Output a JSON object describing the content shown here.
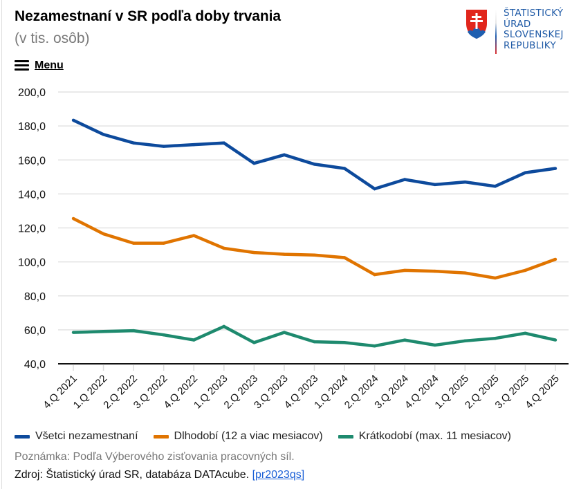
{
  "header": {
    "title": "Nezamestnaní v SR podľa doby trvania",
    "subtitle": "(v tis. osôb)",
    "menu_label": "Menu"
  },
  "logo": {
    "lines": [
      "ŠTATISTICKÝ",
      "ÚRAD",
      "SLOVENSKEJ",
      "REPUBLIKY"
    ],
    "icon": "slovak-coat-of-arms-icon"
  },
  "chart_data": {
    "type": "line",
    "title": "Nezamestnaní v SR podľa doby trvania",
    "subtitle": "(v tis. osôb)",
    "xlabel": "",
    "ylabel": "",
    "ylim": [
      40,
      200
    ],
    "yticks": [
      40,
      60,
      80,
      100,
      120,
      140,
      160,
      180,
      200
    ],
    "ytick_labels": [
      "40,0",
      "60,0",
      "80,0",
      "100,0",
      "120,0",
      "140,0",
      "160,0",
      "180,0",
      "200,0"
    ],
    "grid": true,
    "legend_position": "bottom",
    "categories": [
      "4.Q 2021",
      "1.Q 2022",
      "2.Q 2022",
      "3.Q 2022",
      "4.Q 2022",
      "1.Q 2023",
      "2.Q 2023",
      "3.Q 2023",
      "4.Q 2023",
      "1.Q 2024",
      "2.Q 2024",
      "3.Q 2024",
      "4.Q 2024",
      "1.Q 2025",
      "2.Q 2025",
      "3.Q 2025",
      "4.Q 2025"
    ],
    "series": [
      {
        "name": "Všetci nezamestnaní",
        "color": "#0d4a9c",
        "values": [
          183.4,
          175.0,
          170.0,
          168.0,
          169.0,
          170.0,
          158.0,
          163.0,
          157.5,
          155.0,
          143.0,
          148.5,
          145.5,
          147.0,
          144.5,
          152.5,
          155.0
        ]
      },
      {
        "name": "Dlhodobí (12 a viac mesiacov)",
        "color": "#e07400",
        "values": [
          125.5,
          116.5,
          111.0,
          111.0,
          115.5,
          108.0,
          105.5,
          104.5,
          104.0,
          102.5,
          92.5,
          95.0,
          94.5,
          93.5,
          90.5,
          95.0,
          101.5
        ]
      },
      {
        "name": "Krátkodobí (max. 11 mesiacov)",
        "color": "#1e8a6e",
        "values": [
          58.5,
          59.0,
          59.5,
          57.0,
          54.0,
          62.0,
          52.5,
          58.5,
          53.0,
          52.5,
          50.5,
          54.0,
          51.0,
          53.5,
          55.0,
          58.0,
          54.0
        ]
      }
    ]
  },
  "footer": {
    "note": "Poznámka: Podľa Výberového zisťovania pracovných síl.",
    "source_prefix": "Zdroj: Štatistický úrad SR, databáza DATAcube.",
    "source_link": "[pr2023qs]"
  }
}
